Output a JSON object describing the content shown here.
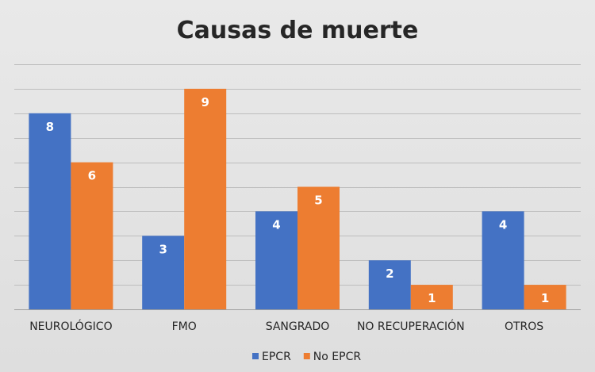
{
  "chart_data": {
    "type": "bar",
    "title": "Causas de muerte",
    "categories": [
      "NEUROLÓGICO",
      "FMO",
      "SANGRADO",
      "NO RECUPERACIÓN",
      "OTROS"
    ],
    "series": [
      {
        "name": "EPCR",
        "values": [
          8,
          3,
          4,
          2,
          4
        ],
        "color": "#4472c4"
      },
      {
        "name": "No EPCR",
        "values": [
          6,
          9,
          5,
          1,
          1
        ],
        "color": "#ed7d31"
      }
    ],
    "ylim": [
      0,
      10
    ],
    "y_gridlines": true,
    "y_tick_labels_visible": false,
    "data_labels": true,
    "legend_position": "bottom"
  }
}
